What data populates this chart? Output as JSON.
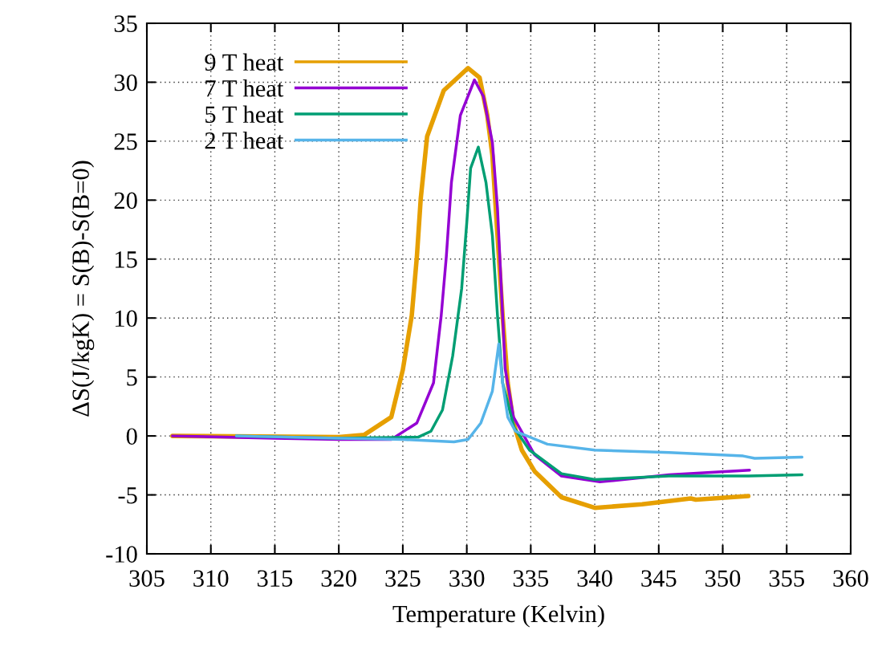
{
  "chart_data": {
    "type": "line",
    "xlabel": "Temperature (Kelvin)",
    "ylabel": "ΔS(J/kgK) = S(B)-S(B=0)",
    "xlim": [
      305,
      360
    ],
    "xticks": [
      305,
      310,
      315,
      320,
      325,
      330,
      335,
      340,
      345,
      350,
      355,
      360
    ],
    "ylim": [
      -10,
      35
    ],
    "yticks": [
      -10,
      -5,
      0,
      5,
      10,
      15,
      20,
      25,
      30,
      35
    ],
    "grid": true,
    "legend": "top left",
    "line_style": "solid",
    "marker": "none",
    "series": [
      {
        "name": "9 T heat",
        "color": "#e69f00",
        "x": [
          307,
          320,
          322,
          324.1,
          325,
          325.7,
          326.1,
          326.4,
          326.9,
          328.2,
          330.1,
          331,
          331.6,
          332,
          332.4,
          332.8,
          333.2,
          333.65,
          334.3,
          335.3,
          337.4,
          340,
          343.7,
          347.5,
          347.9,
          352
        ],
        "values": [
          0,
          -0.1,
          0.1,
          1.6,
          5.6,
          10.2,
          15.2,
          20.1,
          25.4,
          29.3,
          31.2,
          30.4,
          27.2,
          23.8,
          17,
          10.2,
          4.5,
          1.1,
          -1.2,
          -3,
          -5.2,
          -6.1,
          -5.8,
          -5.3,
          -5.4,
          -5.1
        ]
      },
      {
        "name": "7 T heat",
        "color": "#9400d3",
        "x": [
          307,
          315,
          320,
          324.1,
          326.1,
          327.4,
          328,
          328.4,
          328.8,
          329.5,
          330.6,
          331.3,
          332,
          332.4,
          332.7,
          333,
          333.65,
          335.3,
          337.4,
          340.4,
          345.8,
          352.1
        ],
        "values": [
          0,
          -0.2,
          -0.3,
          -0.3,
          1.1,
          4.5,
          10.2,
          15.2,
          21.5,
          27.2,
          30.2,
          28.8,
          24.9,
          19.3,
          12.5,
          5.7,
          1.6,
          -1.6,
          -3.4,
          -3.9,
          -3.3,
          -2.9
        ]
      },
      {
        "name": "5 T heat",
        "color": "#009e73",
        "x": [
          312,
          320,
          326.2,
          327.2,
          328.1,
          328.9,
          329.6,
          330,
          330.3,
          330.9,
          331.5,
          332,
          332.4,
          332.8,
          333.7,
          334.9,
          337.4,
          340,
          345.8,
          352,
          356.2
        ],
        "values": [
          0,
          -0.2,
          -0.1,
          0.4,
          2.2,
          6.8,
          12.5,
          18.1,
          22.7,
          24.5,
          21.5,
          17,
          10.2,
          4.5,
          0.7,
          -1.2,
          -3.2,
          -3.7,
          -3.4,
          -3.4,
          -3.3
        ]
      },
      {
        "name": "2 T heat",
        "color": "#56b4e9",
        "x": [
          312,
          320,
          325,
          329,
          330.1,
          331.1,
          332,
          332.5,
          332.8,
          333.2,
          333.8,
          336.3,
          340,
          345.8,
          351.6,
          352.5,
          356.2
        ],
        "values": [
          0,
          -0.2,
          -0.3,
          -0.5,
          -0.3,
          1.1,
          3.8,
          7.8,
          4.5,
          1.6,
          0.4,
          -0.7,
          -1.2,
          -1.4,
          -1.7,
          -1.9,
          -1.8
        ]
      }
    ]
  }
}
